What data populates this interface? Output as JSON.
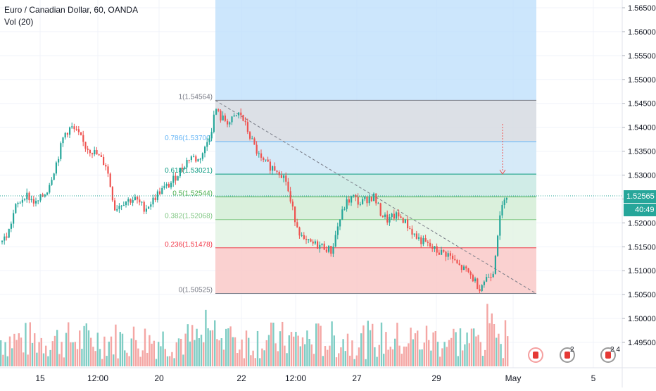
{
  "legend": {
    "symbol": "Euro / Canadian Dollar, 60, OANDA",
    "volume_label": "Vol (20)"
  },
  "price_axis": {
    "ticks": [
      "1.56500",
      "1.56000",
      "1.55500",
      "1.55000",
      "1.54500",
      "1.54000",
      "1.53500",
      "1.53000",
      "1.52500",
      "1.52000",
      "1.51500",
      "1.51000",
      "1.50500",
      "1.50000",
      "1.49500"
    ],
    "tick_values": [
      1.565,
      1.56,
      1.555,
      1.55,
      1.545,
      1.54,
      1.535,
      1.53,
      1.525,
      1.52,
      1.515,
      1.51,
      1.505,
      1.5,
      1.495
    ]
  },
  "time_axis": {
    "ticks": [
      "15",
      "12:00",
      "20",
      "22",
      "12:00",
      "27",
      "29",
      "May",
      "5"
    ]
  },
  "current_price": {
    "label": "1.52565",
    "countdown": "40:49",
    "color": "#26a69a"
  },
  "fib": {
    "levels": [
      {
        "ratio": 1,
        "price": 1.54564,
        "label": "1(1.54564)",
        "color": "#787b86"
      },
      {
        "ratio": 0.786,
        "price": 1.537,
        "label": "0.786(1.53700)",
        "color": "#64b5f6"
      },
      {
        "ratio": 0.618,
        "price": 1.53021,
        "label": "0.618(1.53021)",
        "color": "#089981"
      },
      {
        "ratio": 0.5,
        "price": 1.52544,
        "label": "0.5(1.52544)",
        "color": "#4caf50"
      },
      {
        "ratio": 0.382,
        "price": 1.52068,
        "label": "0.382(1.52068)",
        "color": "#81c784"
      },
      {
        "ratio": 0.236,
        "price": 1.51478,
        "label": "0.236(1.51478)",
        "color": "#f23645"
      },
      {
        "ratio": 0,
        "price": 1.50525,
        "label": "0(1.50525)",
        "color": "#787b86"
      }
    ]
  },
  "colors": {
    "up": "#26a69a",
    "down": "#ef5350",
    "vol_up": "#7fcdc4",
    "vol_down": "#f4a6a4",
    "highlight": "#bbdefb"
  },
  "events": [
    {
      "name": "flag-event",
      "count": ""
    },
    {
      "name": "earnings-event",
      "count": "2"
    },
    {
      "name": "earnings-event",
      "count": "2 4"
    }
  ],
  "chart_data": {
    "type": "candlestick",
    "title": "Euro / Canadian Dollar, 60, OANDA",
    "ylim": [
      1.4925,
      1.5685
    ],
    "path_points": [
      [
        0,
        1.516
      ],
      [
        10,
        1.5175
      ],
      [
        20,
        1.523
      ],
      [
        35,
        1.526
      ],
      [
        50,
        1.524
      ],
      [
        65,
        1.5265
      ],
      [
        80,
        1.533
      ],
      [
        90,
        1.5385
      ],
      [
        100,
        1.54
      ],
      [
        110,
        1.5385
      ],
      [
        120,
        1.536
      ],
      [
        135,
        1.5345
      ],
      [
        150,
        1.532
      ],
      [
        158,
        1.526
      ],
      [
        162,
        1.523
      ],
      [
        175,
        1.5245
      ],
      [
        190,
        1.525
      ],
      [
        205,
        1.523
      ],
      [
        215,
        1.5245
      ],
      [
        225,
        1.5265
      ],
      [
        240,
        1.528
      ],
      [
        250,
        1.53
      ],
      [
        262,
        1.5325
      ],
      [
        270,
        1.534
      ],
      [
        280,
        1.533
      ],
      [
        290,
        1.5355
      ],
      [
        300,
        1.54
      ],
      [
        305,
        1.544
      ],
      [
        312,
        1.542
      ],
      [
        325,
        1.541
      ],
      [
        340,
        1.543
      ],
      [
        350,
        1.5395
      ],
      [
        360,
        1.536
      ],
      [
        370,
        1.533
      ],
      [
        380,
        1.532
      ],
      [
        395,
        1.531
      ],
      [
        405,
        1.529
      ],
      [
        412,
        1.524
      ],
      [
        420,
        1.52
      ],
      [
        430,
        1.516
      ],
      [
        445,
        1.5155
      ],
      [
        460,
        1.515
      ],
      [
        470,
        1.514
      ],
      [
        480,
        1.52
      ],
      [
        490,
        1.524
      ],
      [
        500,
        1.5255
      ],
      [
        510,
        1.524
      ],
      [
        520,
        1.525
      ],
      [
        530,
        1.5255
      ],
      [
        540,
        1.522
      ],
      [
        550,
        1.5205
      ],
      [
        560,
        1.5215
      ],
      [
        570,
        1.521
      ],
      [
        580,
        1.519
      ],
      [
        590,
        1.517
      ],
      [
        600,
        1.516
      ],
      [
        610,
        1.515
      ],
      [
        620,
        1.514
      ],
      [
        635,
        1.5135
      ],
      [
        650,
        1.511
      ],
      [
        665,
        1.5095
      ],
      [
        680,
        1.5065
      ],
      [
        690,
        1.5085
      ],
      [
        700,
        1.51
      ],
      [
        705,
        1.517
      ],
      [
        710,
        1.5215
      ],
      [
        716,
        1.526
      ],
      [
        720,
        1.5257
      ]
    ]
  }
}
